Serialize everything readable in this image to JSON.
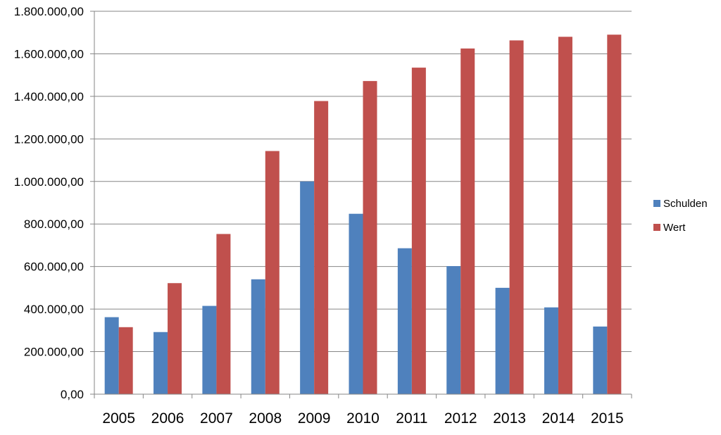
{
  "chart_data": {
    "type": "bar",
    "categories": [
      "2005",
      "2006",
      "2007",
      "2008",
      "2009",
      "2010",
      "2011",
      "2012",
      "2013",
      "2014",
      "2015"
    ],
    "series": [
      {
        "name": "Schulden",
        "color": "#4F81BD",
        "values": [
          362000,
          292000,
          415000,
          540000,
          1000000,
          848000,
          686000,
          602000,
          500000,
          408000,
          318000
        ]
      },
      {
        "name": "Wert",
        "color": "#C0504D",
        "values": [
          315000,
          522000,
          753000,
          1143000,
          1378000,
          1472000,
          1535000,
          1625000,
          1663000,
          1680000,
          1690000
        ]
      }
    ],
    "title": "",
    "xlabel": "",
    "ylabel": "",
    "ylim": [
      0,
      1800000
    ],
    "yticks": [
      "0,00",
      "200.000,00",
      "400.000,00",
      "600.000,00",
      "800.000,00",
      "1.000.000,00",
      "1.200.000,00",
      "1.400.000,00",
      "1.600.000,00",
      "1.800.000,00"
    ],
    "grid": true,
    "legend_position": "right",
    "gridline_color": "#868686",
    "axis_color": "#868686"
  }
}
